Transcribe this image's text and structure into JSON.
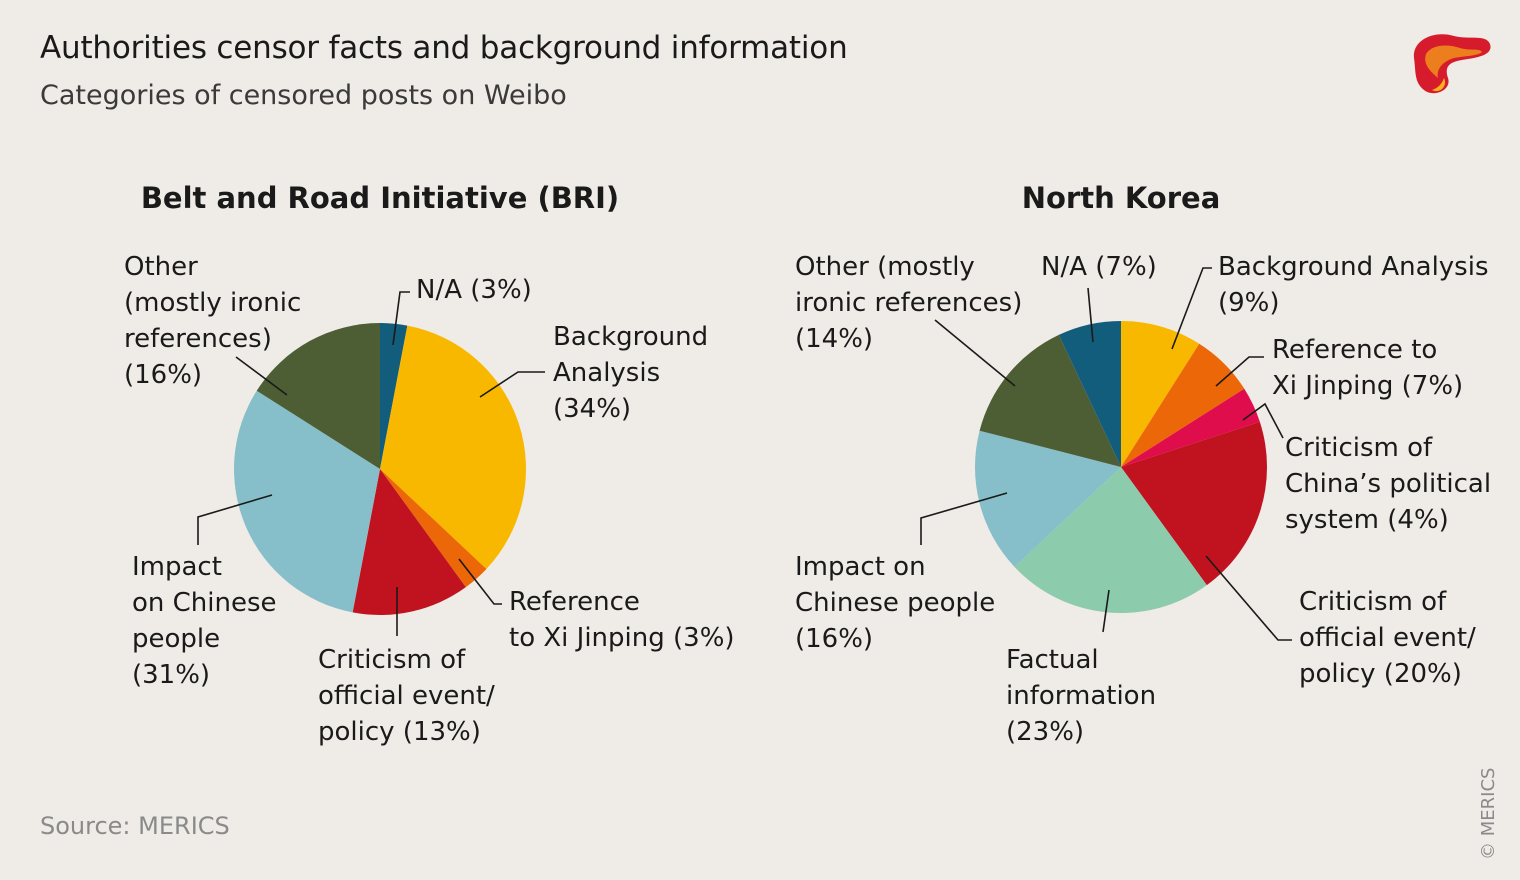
{
  "title": "Authorities censor facts and background information",
  "subtitle": "Categories of censored posts on Weibo",
  "source": "Source: MERICS",
  "copyright": "© MERICS",
  "chart_data": [
    {
      "type": "pie",
      "title": "Belt and Road Initiative (BRI)",
      "slices": [
        {
          "label_lines": [
            "N/A (3%)"
          ],
          "value": 3,
          "color": "#135d7c"
        },
        {
          "label_lines": [
            "Background",
            "Analysis",
            "(34%)"
          ],
          "value": 34,
          "color": "#f9b800"
        },
        {
          "label_lines": [
            "Reference",
            "to Xi Jinping (3%)"
          ],
          "value": 3,
          "color": "#ec6707"
        },
        {
          "label_lines": [
            "Criticism of",
            "official event/",
            "policy (13%)"
          ],
          "value": 13,
          "color": "#c0121f"
        },
        {
          "label_lines": [
            "Impact",
            "on Chinese",
            "people",
            "(31%)"
          ],
          "value": 31,
          "color": "#86bfc9"
        },
        {
          "label_lines": [
            "Other",
            "(mostly ironic",
            "references)",
            "(16%)"
          ],
          "value": 16,
          "color": "#4d5e34"
        }
      ]
    },
    {
      "type": "pie",
      "title": "North Korea",
      "slices": [
        {
          "label_lines": [
            "Background Analysis",
            "(9%)"
          ],
          "value": 9,
          "color": "#f9b800"
        },
        {
          "label_lines": [
            "Reference to",
            "Xi Jinping (7%)"
          ],
          "value": 7,
          "color": "#ec6707"
        },
        {
          "label_lines": [
            "Criticism of",
            "China’s political",
            "system (4%)"
          ],
          "value": 4,
          "color": "#e00d4d"
        },
        {
          "label_lines": [
            "Criticism of",
            "official event/",
            "policy (20%)"
          ],
          "value": 20,
          "color": "#c0121f"
        },
        {
          "label_lines": [
            "Factual",
            "information",
            "(23%)"
          ],
          "value": 23,
          "color": "#8ccbab"
        },
        {
          "label_lines": [
            "Impact on",
            "Chinese people",
            "(16%)"
          ],
          "value": 16,
          "color": "#86bfc9"
        },
        {
          "label_lines": [
            "Other (mostly",
            "ironic references)",
            "(14%)"
          ],
          "value": 14,
          "color": "#4d5e34"
        },
        {
          "label_lines": [
            "N/A (7%)"
          ],
          "value": 7,
          "color": "#135d7c"
        }
      ]
    }
  ]
}
